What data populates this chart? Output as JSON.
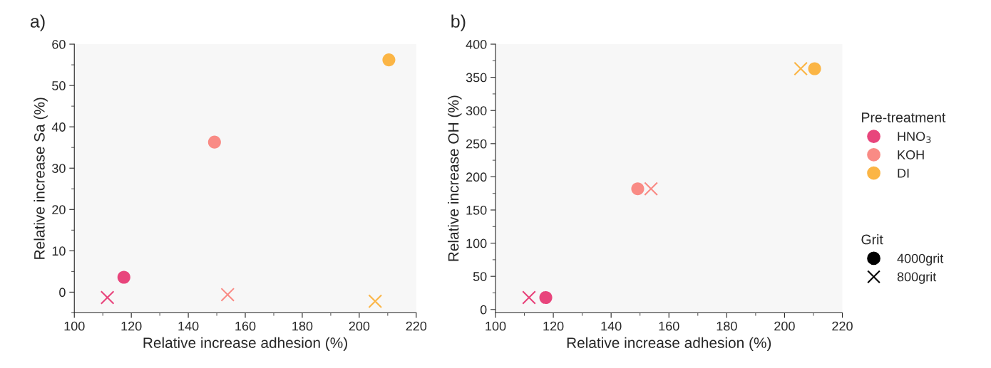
{
  "chart_data": [
    {
      "type": "scatter",
      "title": "a)",
      "xlabel": "Relative increase adhesion (%)",
      "ylabel": "Relative increase Sa (%)",
      "xlim": [
        100,
        220
      ],
      "xticks": [
        100,
        120,
        140,
        160,
        180,
        200,
        220
      ],
      "ylim": [
        -5,
        60
      ],
      "yticks": [
        0,
        10,
        20,
        30,
        40,
        50,
        60
      ],
      "grid": false,
      "legend": false,
      "series": [
        {
          "color": "#e8457c",
          "marker": "circle",
          "x": [
            117.4
          ],
          "values": [
            3.6
          ]
        },
        {
          "color": "#e8457c",
          "marker": "cross",
          "x": [
            111.6
          ],
          "values": [
            -1.3
          ]
        },
        {
          "color": "#f98b85",
          "marker": "circle",
          "x": [
            149.2
          ],
          "values": [
            36.3
          ]
        },
        {
          "color": "#f98b85",
          "marker": "cross",
          "x": [
            153.8
          ],
          "values": [
            -0.6
          ]
        },
        {
          "color": "#fbb545",
          "marker": "circle",
          "x": [
            210.4
          ],
          "values": [
            56.2
          ]
        },
        {
          "color": "#fbb545",
          "marker": "cross",
          "x": [
            205.6
          ],
          "values": [
            -2.2
          ]
        }
      ]
    },
    {
      "type": "scatter",
      "title": "b)",
      "xlabel": "Relative increase adhesion (%)",
      "ylabel": "Relative increase OH (%)",
      "xlim": [
        100,
        220
      ],
      "xticks": [
        100,
        120,
        140,
        160,
        180,
        200,
        220
      ],
      "ylim": [
        -5,
        400
      ],
      "yticks": [
        0,
        50,
        100,
        150,
        200,
        250,
        300,
        350,
        400
      ],
      "grid": false,
      "legend": "right",
      "legend_title": "Pre-treatment",
      "annotations": [
        "Grit"
      ],
      "series": [
        {
          "name": "HNO$_{3}$",
          "color": "#e8457c",
          "marker": "circle",
          "x": [
            117.4
          ],
          "values": [
            18
          ]
        },
        {
          "color": "#e8457c",
          "marker": "cross",
          "x": [
            111.6
          ],
          "values": [
            18
          ]
        },
        {
          "name": "KOH",
          "color": "#f98b85",
          "marker": "circle",
          "x": [
            149.2
          ],
          "values": [
            182
          ]
        },
        {
          "color": "#f98b85",
          "marker": "cross",
          "x": [
            153.8
          ],
          "values": [
            182
          ]
        },
        {
          "name": "DI",
          "color": "#fbb545",
          "marker": "circle",
          "x": [
            210.4
          ],
          "values": [
            363
          ]
        },
        {
          "color": "#fbb545",
          "marker": "cross",
          "x": [
            205.6
          ],
          "values": [
            363
          ]
        },
        {
          "name": "4000grit",
          "color": "#000000",
          "marker": "circle"
        },
        {
          "name": "800grit",
          "color": "#000000",
          "marker": "cross"
        }
      ]
    }
  ]
}
